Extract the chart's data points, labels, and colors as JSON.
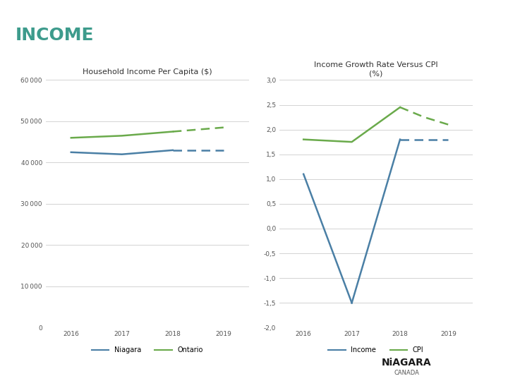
{
  "title": "INCOME",
  "chart1_title": "Household Income Per Capita ($)",
  "chart2_title": "Income Growth Rate Versus CPI\n(%)",
  "years": [
    2016,
    2017,
    2018,
    2019
  ],
  "niagara_solid": [
    42500,
    42000,
    43000,
    43000
  ],
  "ontario_solid": [
    46000,
    46500,
    47500,
    48500
  ],
  "income_solid": [
    1.1,
    -1.5
  ],
  "income_connect": [
    -1.5,
    1.8
  ],
  "income_dashed": [
    1.8,
    1.8
  ],
  "cpi_solid": [
    1.8,
    1.75,
    2.45
  ],
  "cpi_dashed": [
    2.45,
    2.25,
    2.1
  ],
  "niagara_color": "#4a7fa5",
  "ontario_color": "#6aaa4b",
  "income_color": "#4a7fa5",
  "cpi_color": "#6aaa4b",
  "sidebar_color": "#3d9b8c",
  "title_color": "#3d9b8c",
  "grid_color": "#cccccc",
  "chart1_ylim": [
    0,
    60000
  ],
  "chart1_yticks": [
    0,
    10000,
    20000,
    30000,
    40000,
    50000,
    60000
  ],
  "chart2_ylim": [
    -2.0,
    3.0
  ],
  "chart2_yticks": [
    -2.0,
    -1.5,
    -1.0,
    -0.5,
    0.0,
    0.5,
    1.0,
    1.5,
    2.0,
    2.5,
    3.0
  ],
  "legend1": [
    "Niagara",
    "Ontario"
  ],
  "legend2": [
    "Income",
    "CPI"
  ],
  "niagara_logo": "NiAGARA",
  "canada_logo": "CANADA"
}
